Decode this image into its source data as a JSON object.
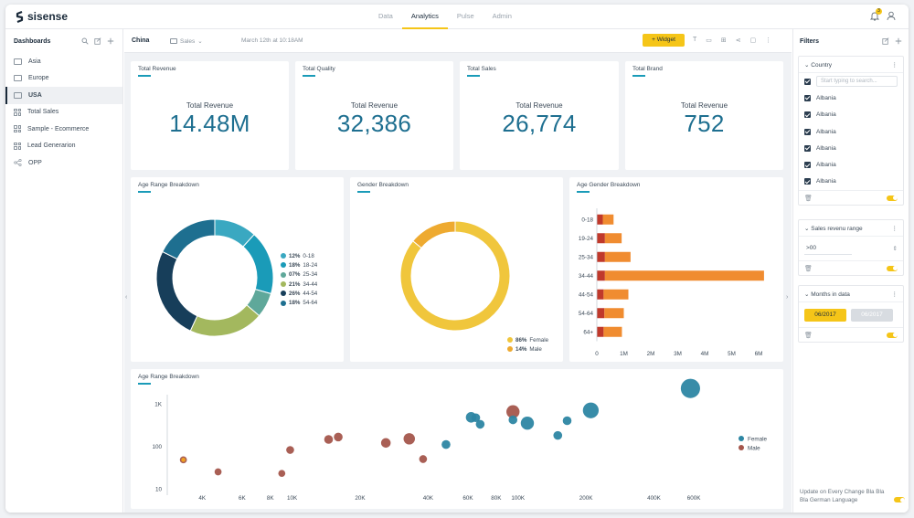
{
  "app": {
    "logo": "sisense",
    "nav_tabs": [
      {
        "label": "Data"
      },
      {
        "label": "Analytics"
      },
      {
        "label": "Pulse"
      },
      {
        "label": "Admin"
      }
    ],
    "active_tab": "Analytics",
    "notification_count": "3"
  },
  "sidebar": {
    "title": "Dashboards",
    "items": [
      {
        "label": "Asia",
        "icon": "folder-icon"
      },
      {
        "label": "Europe",
        "icon": "folder-icon"
      },
      {
        "label": "USA",
        "icon": "folder-icon"
      },
      {
        "label": "Total Sales",
        "icon": "dashboard-icon"
      },
      {
        "label": "Sample - Ecommerce",
        "icon": "dashboard-icon"
      },
      {
        "label": "Lead Generarion",
        "icon": "dashboard-icon"
      },
      {
        "label": "OPP",
        "icon": "share-icon"
      }
    ],
    "active_item": "USA"
  },
  "toolbar": {
    "dashboard_title": "China",
    "folder": "Sales",
    "date": "March 12th at 10:18AM",
    "widget_button": "Widget"
  },
  "kpis": [
    {
      "title": "Total Revenue",
      "label": "Total Revenue",
      "value": "14.48M"
    },
    {
      "title": "Total Quality",
      "label": "Total Revenue",
      "value": "32,386"
    },
    {
      "title": "Total Sales",
      "label": "Total Revenue",
      "value": "26,774"
    },
    {
      "title": "Total Brand",
      "label": "Total Revenue",
      "value": "752"
    }
  ],
  "charts": {
    "age_donut_title": "Age Range Breakdown",
    "gender_donut_title": "Gender Breakdown",
    "age_gender_title": "Age Gender Breakdown",
    "scatter_title": "Age Range Breakdown"
  },
  "chart_data": [
    {
      "type": "pie",
      "title": "Age Range Breakdown",
      "categories": [
        "0-18",
        "18-24",
        "25-34",
        "34-44",
        "44-54",
        "54-64"
      ],
      "labels": [
        "12%",
        "18%",
        "07%",
        "21%",
        "26%",
        "18%"
      ],
      "values": [
        12,
        18,
        7,
        21,
        26,
        18
      ],
      "colors": [
        "#3aa8c1",
        "#1a9bb8",
        "#5fa89a",
        "#a3b85e",
        "#173e5a",
        "#1e6f90"
      ],
      "legend_position": "right"
    },
    {
      "type": "pie",
      "title": "Gender Breakdown",
      "categories": [
        "Female",
        "Male"
      ],
      "labels": [
        "86%",
        "14%"
      ],
      "values": [
        86,
        14
      ],
      "colors": [
        "#f0c63c",
        "#eeaa30"
      ],
      "legend_position": "bottom-right"
    },
    {
      "type": "bar",
      "title": "Age Gender Breakdown",
      "orientation": "horizontal",
      "categories": [
        "0-18",
        "19-24",
        "25-34",
        "34-44",
        "44-54",
        "54-64",
        "64+"
      ],
      "series": [
        {
          "name": "",
          "values": [
            0.22,
            0.3,
            0.3,
            0.3,
            0.25,
            0.28,
            0.25
          ],
          "color": "#c0392b"
        },
        {
          "name": "",
          "values": [
            0.4,
            0.62,
            0.95,
            5.9,
            0.92,
            0.72,
            0.68
          ],
          "color": "#f08c30"
        }
      ],
      "stacked": true,
      "x_ticks": [
        "0",
        "1M",
        "2M",
        "3M",
        "4M",
        "5M",
        "6M"
      ],
      "xlim": [
        0,
        6
      ]
    },
    {
      "type": "scatter",
      "title": "Age Range Breakdown",
      "x_scale": "log",
      "y_scale": "log",
      "x_ticks": [
        "4K",
        "6K",
        "8K",
        "10K",
        "20K",
        "40K",
        "60K",
        "80K",
        "100K",
        "200K",
        "400K",
        "600K"
      ],
      "x_tick_values": [
        4000,
        6000,
        8000,
        10000,
        20000,
        40000,
        60000,
        80000,
        100000,
        200000,
        400000,
        600000
      ],
      "y_ticks": [
        "10",
        "100",
        "1K"
      ],
      "y_tick_values": [
        10,
        100,
        1000
      ],
      "series": [
        {
          "name": "Female",
          "color": "#2d86a3",
          "points": [
            [
              48000,
              110,
              1
            ],
            [
              62000,
              480,
              1.2
            ],
            [
              65000,
              470,
              1
            ],
            [
              68000,
              330,
              1
            ],
            [
              95000,
              420,
              1
            ],
            [
              110000,
              350,
              1.5
            ],
            [
              150000,
              180,
              1
            ],
            [
              165000,
              400,
              1
            ],
            [
              210000,
              700,
              1.8
            ],
            [
              580000,
              2300,
              2.2
            ]
          ]
        },
        {
          "name": "Male",
          "color": "#a4564c",
          "points": [
            [
              3300,
              48,
              0.8
            ],
            [
              4700,
              25,
              0.8
            ],
            [
              9000,
              23,
              0.8
            ],
            [
              9800,
              82,
              0.9
            ],
            [
              14500,
              145,
              1
            ],
            [
              16000,
              165,
              1
            ],
            [
              26000,
              120,
              1.1
            ],
            [
              33000,
              150,
              1.3
            ],
            [
              38000,
              50,
              0.9
            ],
            [
              95000,
              650,
              1.5
            ]
          ]
        }
      ],
      "legend_position": "right"
    }
  ],
  "filters": {
    "title": "Filters",
    "country": {
      "label": "Country",
      "search_placeholder": "Start typing to search...",
      "options": [
        "Albania",
        "Albania",
        "Albania",
        "Albania",
        "Albania",
        "Albania"
      ]
    },
    "sales_range": {
      "label": "Sales revenu range",
      "value": ">00"
    },
    "months": {
      "label": "Months in data",
      "from": "06/2017",
      "to": "06/2017"
    },
    "footer_text": "Update on Every Change Bla Bla Bla German Language"
  }
}
